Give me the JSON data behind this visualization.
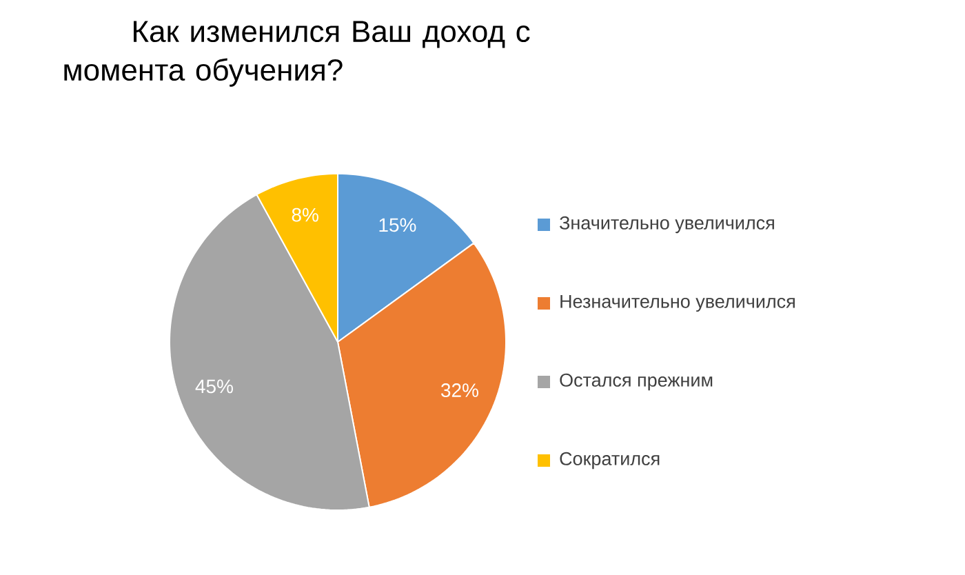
{
  "chart_data": {
    "type": "pie",
    "title": "Как изменился Ваш доход с момента обучения?",
    "categories": [
      "Значительно увеличился",
      "Незначительно увеличился",
      "Остался прежним",
      "Сократился"
    ],
    "values": [
      15,
      32,
      45,
      8
    ],
    "value_labels": [
      "15%",
      "32%",
      "45%",
      "8%"
    ],
    "colors": [
      "#5b9bd5",
      "#ed7d31",
      "#a5a5a5",
      "#ffc000"
    ],
    "legend": "right"
  }
}
